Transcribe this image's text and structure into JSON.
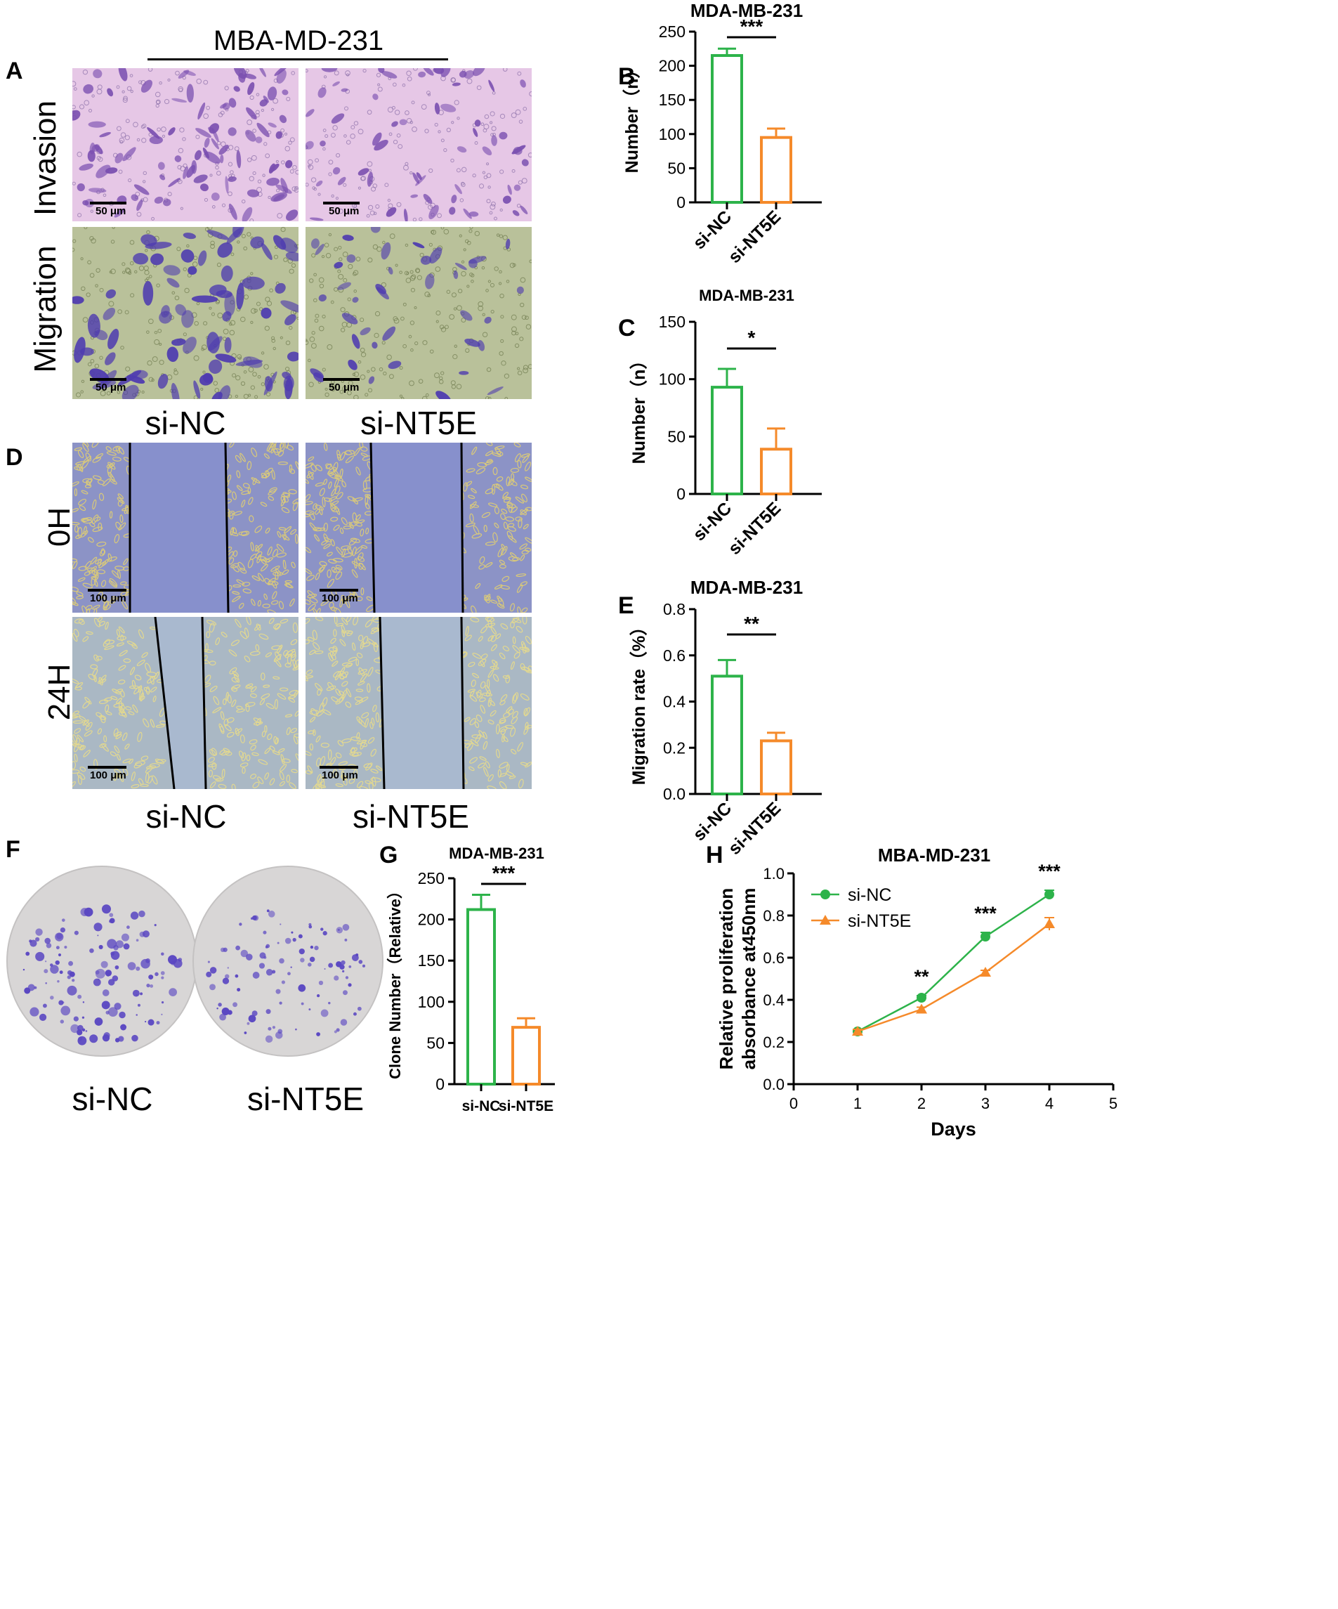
{
  "panelA": {
    "letter": "A",
    "header": "MBA-MD-231",
    "row_labels": [
      "Invasion",
      "Migration"
    ],
    "col_labels": [
      "si-NC",
      "si-NT5E"
    ],
    "scale_label": "50 μm",
    "colors": {
      "invasion_bg": "#e6c7e6",
      "invasion_cell": "#7a4fb0",
      "migration_bg": "#b9c19a",
      "migration_cell": "#4e3bb0"
    }
  },
  "panelD": {
    "letter": "D",
    "row_labels": [
      "0H",
      "24H"
    ],
    "col_labels": [
      "si-NC",
      "si-NT5E"
    ],
    "scale_label": "100 μm",
    "colors": {
      "h0_bg": "#8c93c6",
      "h0_gap": "#8790cc",
      "h24_bg": "#aab8c4",
      "h24_gap": "#a9b9cf"
    }
  },
  "panelF": {
    "letter": "F",
    "col_labels": [
      "si-NC",
      "si-NT5E"
    ],
    "colors": {
      "dish": "#d8d6d6",
      "colony": "#5a47c2"
    }
  },
  "chart_data": [
    {
      "letter": "B",
      "type": "bar",
      "title": "MDA-MB-231",
      "categories": [
        "si-NC",
        "si-NT5E"
      ],
      "values": [
        215,
        95
      ],
      "errors": [
        10,
        13
      ],
      "ylabel": "Number（n）",
      "ylim": [
        0,
        250
      ],
      "yticks": [
        0,
        50,
        100,
        150,
        200,
        250
      ],
      "significance": "***",
      "colors": [
        "#2db34a",
        "#f58a2a"
      ]
    },
    {
      "letter": "C",
      "type": "bar",
      "title": "MDA-MB-231",
      "categories": [
        "si-NC",
        "si-NT5E"
      ],
      "values": [
        93,
        39
      ],
      "errors": [
        16,
        18
      ],
      "ylabel": "Number（n）",
      "ylim": [
        0,
        150
      ],
      "yticks": [
        0,
        50,
        100,
        150
      ],
      "significance": "*",
      "colors": [
        "#2db34a",
        "#f58a2a"
      ]
    },
    {
      "letter": "E",
      "type": "bar",
      "title": "MDA-MB-231",
      "categories": [
        "si-NC",
        "si-NT5E"
      ],
      "values": [
        0.51,
        0.23
      ],
      "errors": [
        0.07,
        0.035
      ],
      "ylabel": "Migration rate（%）",
      "ylim": [
        0,
        0.8
      ],
      "yticks": [
        "0.0",
        "0.2",
        "0.4",
        "0.6",
        "0.8"
      ],
      "significance": "**",
      "colors": [
        "#2db34a",
        "#f58a2a"
      ]
    },
    {
      "letter": "G",
      "type": "bar",
      "title": "MDA-MB-231",
      "categories": [
        "si-NC",
        "si-NT5E"
      ],
      "values": [
        212,
        69
      ],
      "errors": [
        18,
        11
      ],
      "ylabel": "Clone Number（Relative）",
      "ylim": [
        0,
        250
      ],
      "yticks": [
        0,
        50,
        100,
        150,
        200,
        250
      ],
      "significance": "***",
      "colors": [
        "#2db34a",
        "#f58a2a"
      ]
    },
    {
      "letter": "H",
      "type": "line",
      "title": "MBA-MD-231",
      "x": [
        1,
        2,
        3,
        4
      ],
      "series": [
        {
          "name": "si-NC",
          "values": [
            0.25,
            0.41,
            0.7,
            0.9
          ],
          "errors": [
            0.01,
            0.01,
            0.02,
            0.02
          ],
          "color": "#2db34a",
          "marker": "circle"
        },
        {
          "name": "si-NT5E",
          "values": [
            0.25,
            0.355,
            0.53,
            0.76
          ],
          "errors": [
            0.01,
            0.01,
            0.01,
            0.03
          ],
          "color": "#f58a2a",
          "marker": "triangle"
        }
      ],
      "xlabel": "Days",
      "ylabel_lines": [
        "Relative proliferation",
        "absorbance at450nm"
      ],
      "xlim": [
        0,
        5
      ],
      "xticks": [
        0,
        1,
        2,
        3,
        4,
        5
      ],
      "ylim": [
        0,
        1.0
      ],
      "yticks": [
        "0.0",
        "0.2",
        "0.4",
        "0.6",
        "0.8",
        "1.0"
      ],
      "annotations": [
        {
          "x": 2,
          "text": "**"
        },
        {
          "x": 3,
          "text": "***"
        },
        {
          "x": 4,
          "text": "***"
        }
      ],
      "legend": "top-left"
    }
  ]
}
